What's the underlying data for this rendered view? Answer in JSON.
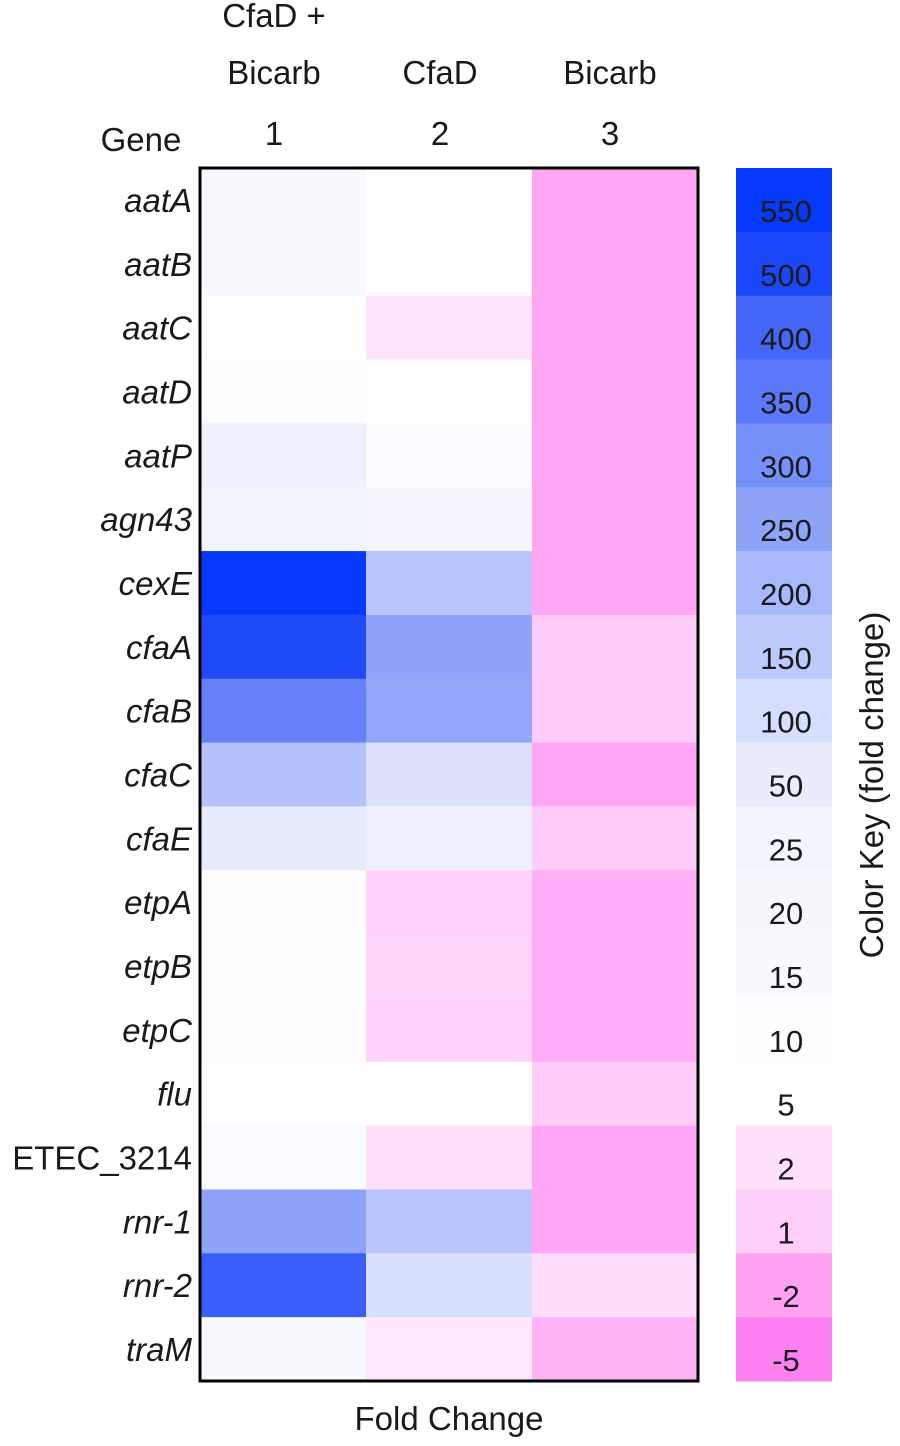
{
  "chart_data": {
    "type": "heatmap",
    "row_header": "Gene",
    "xlabel": "Fold Change",
    "columns": [
      {
        "number": "1",
        "header_lines": [
          "CfaD +",
          "Bicarb"
        ]
      },
      {
        "number": "2",
        "header_lines": [
          "CfaD"
        ]
      },
      {
        "number": "3",
        "header_lines": [
          "Bicarb"
        ]
      }
    ],
    "rows": [
      {
        "gene": "aatA",
        "italic": true
      },
      {
        "gene": "aatB",
        "italic": true
      },
      {
        "gene": "aatC",
        "italic": true
      },
      {
        "gene": "aatD",
        "italic": true
      },
      {
        "gene": "aatP",
        "italic": true
      },
      {
        "gene": "agn43",
        "italic": true
      },
      {
        "gene": "cexE",
        "italic": true
      },
      {
        "gene": "cfaA",
        "italic": true
      },
      {
        "gene": "cfaB",
        "italic": true
      },
      {
        "gene": "cfaC",
        "italic": true
      },
      {
        "gene": "cfaE",
        "italic": true
      },
      {
        "gene": "etpA",
        "italic": true
      },
      {
        "gene": "etpB",
        "italic": true
      },
      {
        "gene": "etpC",
        "italic": true
      },
      {
        "gene": "flu",
        "italic": true
      },
      {
        "gene": "ETEC_3214",
        "italic": false
      },
      {
        "gene": "rnr-1",
        "italic": true
      },
      {
        "gene": "rnr-2",
        "italic": true
      },
      {
        "gene": "traM",
        "italic": true
      }
    ],
    "cell_colors": [
      [
        "#f8f9fe",
        "#ffffff",
        "#ffa6f5"
      ],
      [
        "#f8f9fe",
        "#ffffff",
        "#ffa6f5"
      ],
      [
        "#ffffff",
        "#ffe3fb",
        "#ffa6f5"
      ],
      [
        "#fdfdff",
        "#ffffff",
        "#ffa6f5"
      ],
      [
        "#eef1fd",
        "#fbfcff",
        "#ffa6f5"
      ],
      [
        "#f3f5fe",
        "#f6f7fe",
        "#ffa6f5"
      ],
      [
        "#0739fc",
        "#b9c5fd",
        "#ffa6f5"
      ],
      [
        "#2049f8",
        "#8ea3f9",
        "#ffccfa"
      ],
      [
        "#6681f9",
        "#93a7f9",
        "#ffccfa"
      ],
      [
        "#b4c2fc",
        "#dbe1fb",
        "#ffa6f5"
      ],
      [
        "#e6ebfd",
        "#eef1fd",
        "#ffccfa"
      ],
      [
        "#fffcff",
        "#ffd1fb",
        "#ffaef6"
      ],
      [
        "#fffcff",
        "#ffd6fb",
        "#ffaef6"
      ],
      [
        "#fffcff",
        "#ffd1fb",
        "#ffaef6"
      ],
      [
        "#ffffff",
        "#ffffff",
        "#ffccfa"
      ],
      [
        "#fbfcff",
        "#ffe0fb",
        "#ffa6f5"
      ],
      [
        "#8da2f9",
        "#b9c5fd",
        "#ffa6f5"
      ],
      [
        "#3a5efb",
        "#d8dffc",
        "#ffdcfb"
      ],
      [
        "#f8f9fe",
        "#ffe8fc",
        "#ffb3f7"
      ]
    ],
    "color_key": {
      "title": "Color Key (fold change)",
      "levels": [
        {
          "label": "550",
          "color": "#0739fc"
        },
        {
          "label": "500",
          "color": "#1a47f8"
        },
        {
          "label": "400",
          "color": "#4467f7"
        },
        {
          "label": "350",
          "color": "#5a78f8"
        },
        {
          "label": "300",
          "color": "#7591f9"
        },
        {
          "label": "250",
          "color": "#8ea4f9"
        },
        {
          "label": "200",
          "color": "#a7b8fb"
        },
        {
          "label": "150",
          "color": "#bdcafd"
        },
        {
          "label": "100",
          "color": "#d6defd"
        },
        {
          "label": "50",
          "color": "#e8ecfd"
        },
        {
          "label": "25",
          "color": "#f2f4fe"
        },
        {
          "label": "20",
          "color": "#f6f8fe"
        },
        {
          "label": "15",
          "color": "#f9fafe"
        },
        {
          "label": "10",
          "color": "#fcfdff"
        },
        {
          "label": "5",
          "color": "#ffffff"
        },
        {
          "label": "2",
          "color": "#ffe0fb"
        },
        {
          "label": "1",
          "color": "#ffcffa"
        },
        {
          "label": "-2",
          "color": "#ffa2f4"
        },
        {
          "label": "-5",
          "color": "#ff80f1"
        }
      ]
    }
  }
}
